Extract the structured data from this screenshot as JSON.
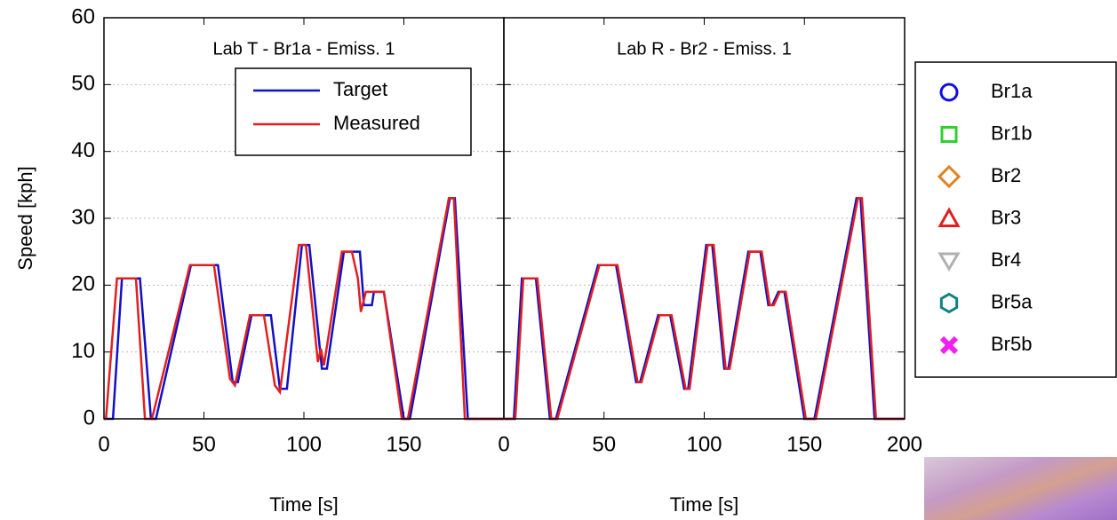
{
  "chart_data": [
    {
      "type": "line",
      "annotation": "Lab T - Br1a - Emiss. 1",
      "xlabel": "Time [s]",
      "ylabel": "Speed [kph]",
      "xlim": [
        0,
        200
      ],
      "ylim": [
        0,
        60
      ],
      "xticks": [
        0,
        50,
        100,
        150
      ],
      "yticks": [
        0,
        10,
        20,
        30,
        40,
        50,
        60
      ],
      "ytick_labels": true,
      "grid": true,
      "legend": "upper center",
      "series": [
        {
          "name": "Target",
          "color": "#1010c8",
          "x": [
            0,
            4.5,
            9,
            18,
            23.5,
            26,
            43.5,
            57,
            64.4,
            67,
            73.8,
            83.5,
            88,
            91.5,
            99,
            102.7,
            109,
            111.5,
            120,
            128,
            130,
            134,
            135,
            140,
            150,
            153,
            173,
            175.5,
            182,
            200
          ],
          "values": [
            0,
            0,
            21,
            21,
            0,
            0,
            23,
            23,
            5.5,
            5.5,
            15.5,
            15.5,
            4.5,
            4.5,
            26,
            26,
            7.5,
            7.5,
            25,
            25,
            17,
            17,
            19,
            19,
            0,
            0,
            33,
            33,
            0,
            0
          ]
        },
        {
          "name": "Measured",
          "color": "#e02020",
          "x": [
            0,
            1,
            6.5,
            16,
            20.5,
            24,
            43,
            55,
            63,
            65.5,
            73,
            80,
            85.5,
            88,
            97.5,
            101,
            107,
            108.5,
            110,
            119,
            124,
            127,
            128.5,
            131,
            135,
            140,
            149,
            152,
            172.5,
            175,
            180.5,
            200
          ],
          "values": [
            0,
            0,
            21,
            21,
            0,
            0,
            23,
            23,
            6,
            5,
            15.5,
            15.5,
            5,
            4,
            26,
            26,
            8.5,
            10.5,
            8,
            25,
            25,
            21,
            16,
            19,
            19,
            19,
            0,
            0,
            33,
            33,
            0,
            0
          ]
        }
      ]
    },
    {
      "type": "line",
      "annotation": "Lab R - Br2 - Emiss. 1",
      "xlabel": "Time [s]",
      "xlim": [
        0,
        200
      ],
      "ylim": [
        0,
        60
      ],
      "xticks": [
        0,
        50,
        100,
        150,
        200
      ],
      "yticks": [
        0,
        10,
        20,
        30,
        40,
        50,
        60
      ],
      "ytick_labels": false,
      "grid": true,
      "series": [
        {
          "color": "#1010c8",
          "x": [
            0,
            5,
            9,
            16,
            23,
            26,
            47,
            56,
            66,
            68,
            77,
            83,
            90,
            92,
            101,
            104,
            110,
            112,
            122,
            128,
            132,
            134,
            137,
            140,
            150,
            155,
            176,
            178,
            185,
            200
          ],
          "values": [
            0,
            0,
            21,
            21,
            0,
            0,
            23,
            23,
            5.5,
            5.5,
            15.5,
            15.5,
            4.5,
            4.5,
            26,
            26,
            7.5,
            7.5,
            25,
            25,
            17,
            17,
            19,
            19,
            0,
            0,
            33,
            33,
            0,
            0
          ]
        },
        {
          "color": "#e02020",
          "x": [
            0,
            5.7,
            9.7,
            16.7,
            23.7,
            26.7,
            47.7,
            56.7,
            66.7,
            68.7,
            77.7,
            83.7,
            90.7,
            92.7,
            101.7,
            104.7,
            110.7,
            112.7,
            122.7,
            128.7,
            132.7,
            134.7,
            137.7,
            140.7,
            150.7,
            155.7,
            176.7,
            178.7,
            185.7,
            200
          ],
          "values": [
            0,
            0,
            21,
            21,
            0,
            0,
            23,
            23,
            5.5,
            5.5,
            15.5,
            15.5,
            4.5,
            4.5,
            26,
            26,
            7.5,
            7.5,
            25,
            25,
            17,
            17,
            19,
            19,
            0,
            0,
            33,
            33,
            0,
            0
          ]
        }
      ]
    }
  ],
  "figure_legend": [
    {
      "name": "Br1a",
      "color": "#1010e0",
      "marker": "circle"
    },
    {
      "name": "Br1b",
      "color": "#30d030",
      "marker": "square"
    },
    {
      "name": "Br2",
      "color": "#e08020",
      "marker": "diamond"
    },
    {
      "name": "Br3",
      "color": "#e02020",
      "marker": "triangle"
    },
    {
      "name": "Br4",
      "color": "#b0b0b0",
      "marker": "triangle-down"
    },
    {
      "name": "Br5a",
      "color": "#108080",
      "marker": "hexagon"
    },
    {
      "name": "Br5b",
      "color": "#f020f0",
      "marker": "x"
    }
  ]
}
